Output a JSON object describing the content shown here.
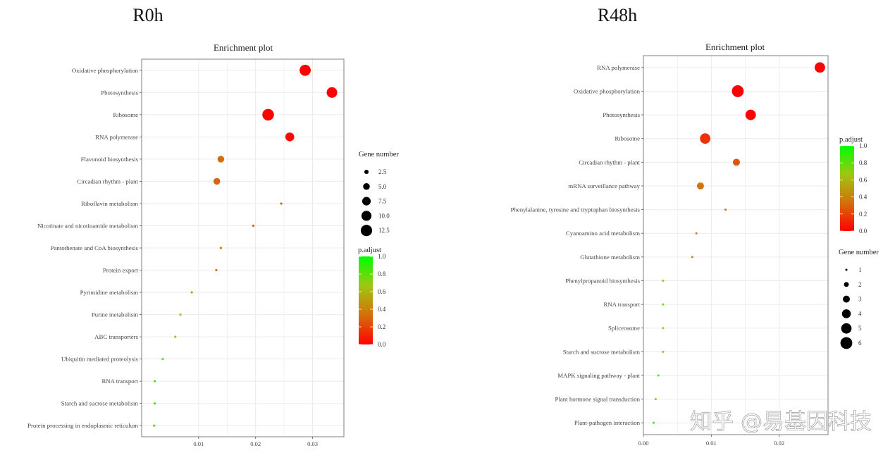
{
  "panel_titles": [
    "R0h",
    "R48h"
  ],
  "watermark": "知乎 @易基因科技",
  "colors": {
    "gradient": [
      "#ff0000",
      "#d4700a",
      "#9ec712",
      "#00ff00"
    ],
    "grid": "#ebebeb",
    "border": "#7f7f7f"
  },
  "chart_data": [
    {
      "type": "scatter",
      "title": "Enrichment plot",
      "xlabel": "",
      "ylabel": "",
      "xlim": [
        0.0,
        0.0355
      ],
      "xticks": [
        0.01,
        0.02,
        0.03
      ],
      "xtick_labels": [
        "0.01",
        "0.02",
        "0.03"
      ],
      "grid": true,
      "legend_placement": "right",
      "size_legend": {
        "title": "Gene number",
        "values": [
          2.5,
          5.0,
          7.5,
          10.0,
          12.5
        ],
        "labels": [
          "2.5",
          "5.0",
          "7.5",
          "10.0",
          "12.5"
        ],
        "range": [
          1,
          14
        ]
      },
      "color_legend": {
        "title": "p.adjust",
        "ticks": [
          1.0,
          0.8,
          0.6,
          0.4,
          0.2,
          0.0
        ],
        "labels": [
          "1.0",
          "0.8",
          "0.6",
          "0.4",
          "0.2",
          "0.0"
        ]
      },
      "categories": [
        "Oxidative phosphorylation",
        "Photosynthesis",
        "Ribosome",
        "RNA polymerase",
        "Flavonoid biosynthesis",
        "Circadian rhythm - plant",
        "Riboflavin metabolism",
        "Nicotinate and nicotinamide metabolism",
        "Pantothenate and CoA biosynthesis",
        "Protein export",
        "Pyrimidine metabolism",
        "Purine metabolism",
        "ABC transporters",
        "Ubiquitin mediated proteolysis",
        "RNA transport",
        "Starch and sucrose metabolism",
        "Protein processing in endoplasmic reticulum"
      ],
      "x": [
        0.0287,
        0.0334,
        0.0222,
        0.026,
        0.0139,
        0.0132,
        0.0245,
        0.0196,
        0.0139,
        0.0131,
        0.0088,
        0.0068,
        0.0059,
        0.0037,
        0.0023,
        0.0023,
        0.0022
      ],
      "gene_number": [
        12,
        11,
        13,
        8,
        5,
        5,
        1,
        1,
        1,
        1,
        1,
        1,
        1,
        1,
        1,
        1,
        1
      ],
      "p_adjust": [
        0.0,
        0.0,
        0.0,
        0.02,
        0.32,
        0.3,
        0.3,
        0.3,
        0.35,
        0.35,
        0.5,
        0.65,
        0.65,
        0.75,
        0.85,
        0.85,
        0.85
      ]
    },
    {
      "type": "scatter",
      "title": "Enrichment plot",
      "xlabel": "",
      "ylabel": "",
      "xlim": [
        0.0,
        0.0272
      ],
      "xticks": [
        0.0,
        0.01,
        0.02
      ],
      "xtick_labels": [
        "0.00",
        "0.01",
        "0.02"
      ],
      "grid": true,
      "legend_placement": "right",
      "size_legend": {
        "title": "Gene number",
        "values": [
          1,
          2,
          3,
          4,
          5,
          6
        ],
        "labels": [
          "1",
          "2",
          "3",
          "4",
          "5",
          "6"
        ],
        "range": [
          1,
          6
        ]
      },
      "color_legend": {
        "title": "p.adjust",
        "ticks": [
          1.0,
          0.8,
          0.6,
          0.4,
          0.2,
          0.0
        ],
        "labels": [
          "1.0",
          "0.8",
          "0.6",
          "0.4",
          "0.2",
          "0.0"
        ]
      },
      "categories": [
        "RNA polymerase",
        "Oxidative phosphorylation",
        "Photosynthesis",
        "Ribosome",
        "Circadian rhythm - plant",
        "mRNA surveillance pathway",
        "Phenylalanine, tyrosine and tryptophan biosynthesis",
        "Cyanoamino acid metabolism",
        "Glutathione metabolism",
        "Phenylpropanoid biosynthesis",
        "RNA transport",
        "Spliceosome",
        "Starch and sucrose metabolism",
        "MAPK signaling pathway - plant",
        "Plant hormone signal transduction",
        "Plant-pathogen interaction"
      ],
      "x": [
        0.026,
        0.0139,
        0.0158,
        0.0091,
        0.0137,
        0.0084,
        0.0121,
        0.0078,
        0.0072,
        0.0029,
        0.0029,
        0.0029,
        0.0029,
        0.0022,
        0.0018,
        0.0015
      ],
      "gene_number": [
        5,
        6,
        5,
        5,
        3,
        3,
        1,
        1,
        1,
        1,
        1,
        1,
        1,
        1,
        1,
        1
      ],
      "p_adjust": [
        0.0,
        0.0,
        0.0,
        0.15,
        0.25,
        0.35,
        0.35,
        0.4,
        0.42,
        0.75,
        0.75,
        0.75,
        0.75,
        0.8,
        0.8,
        0.85
      ]
    }
  ]
}
